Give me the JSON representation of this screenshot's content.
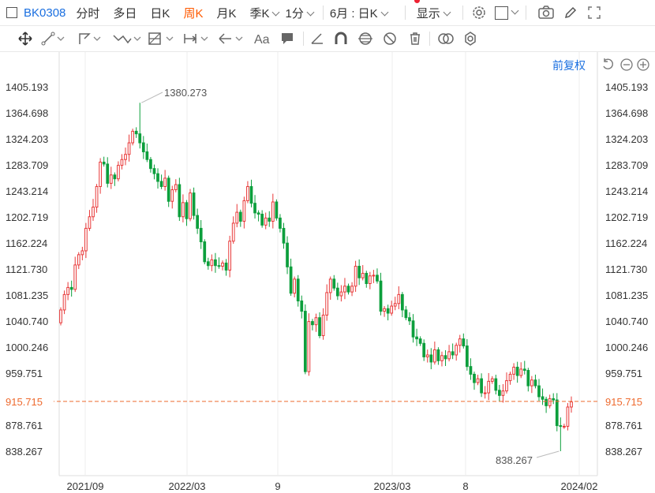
{
  "toolbar": {
    "code": "BK0308",
    "periods": [
      "分时",
      "多日",
      "日K",
      "周K",
      "月K"
    ],
    "active_period": "周K",
    "season": "季K",
    "minute": "1分",
    "range": "6月 : 日K",
    "display": "显示"
  },
  "price_mode": "前复权",
  "colors": {
    "up": "#e83838",
    "down": "#0c9f3c",
    "accent": "#1a6fe0",
    "active": "#ff5a00",
    "ref": "#ee6a2e"
  },
  "axis": {
    "y_ticks": [
      "1405.193",
      "1364.698",
      "1324.203",
      "1283.709",
      "1243.214",
      "1202.719",
      "1162.224",
      "1121.730",
      "1081.235",
      "1040.740",
      "1000.246",
      "959.751",
      "878.761",
      "838.267"
    ],
    "current_price": "915.715",
    "x_labels": [
      "2021/09",
      "2022/03",
      "9",
      "2023/03",
      "8",
      "2024/02"
    ]
  },
  "annotations": {
    "high": "1380.273",
    "low": "838.267"
  },
  "chart_data": {
    "type": "candlestick",
    "period": "weekly",
    "high_label": 1380.273,
    "low_label": 838.267,
    "current": 915.715,
    "ylim": [
      838.267,
      1405.193
    ],
    "closes": [
      1058,
      1082,
      1093,
      1090,
      1128,
      1144,
      1150,
      1185,
      1203,
      1218,
      1250,
      1288,
      1285,
      1255,
      1268,
      1262,
      1283,
      1292,
      1300,
      1318,
      1336,
      1332,
      1318,
      1304,
      1292,
      1278,
      1270,
      1258,
      1250,
      1263,
      1227,
      1245,
      1253,
      1203,
      1225,
      1200,
      1240,
      1205,
      1185,
      1164,
      1133,
      1127,
      1136,
      1127,
      1126,
      1131,
      1120,
      1165,
      1193,
      1210,
      1196,
      1228,
      1250,
      1224,
      1209,
      1207,
      1190,
      1201,
      1196,
      1226,
      1201,
      1185,
      1162,
      1125,
      1084,
      1106,
      1072,
      1056,
      962,
      1040,
      1035,
      1046,
      1018,
      1050,
      1085,
      1106,
      1092,
      1080,
      1086,
      1095,
      1086,
      1095,
      1126,
      1108,
      1115,
      1099,
      1111,
      1112,
      1103,
      1056,
      1060,
      1053,
      1064,
      1068,
      1082,
      1058,
      1046,
      1041,
      1016,
      1013,
      1006,
      985,
      988,
      977,
      996,
      979,
      987,
      982,
      993,
      988,
      1003,
      1013,
      1002,
      970,
      958,
      945,
      951,
      929,
      929,
      947,
      951,
      933,
      925,
      932,
      948,
      958,
      969,
      956,
      966,
      964,
      940,
      949,
      940,
      923,
      919,
      909,
      920,
      918,
      878,
      877,
      877,
      907,
      915
    ]
  }
}
